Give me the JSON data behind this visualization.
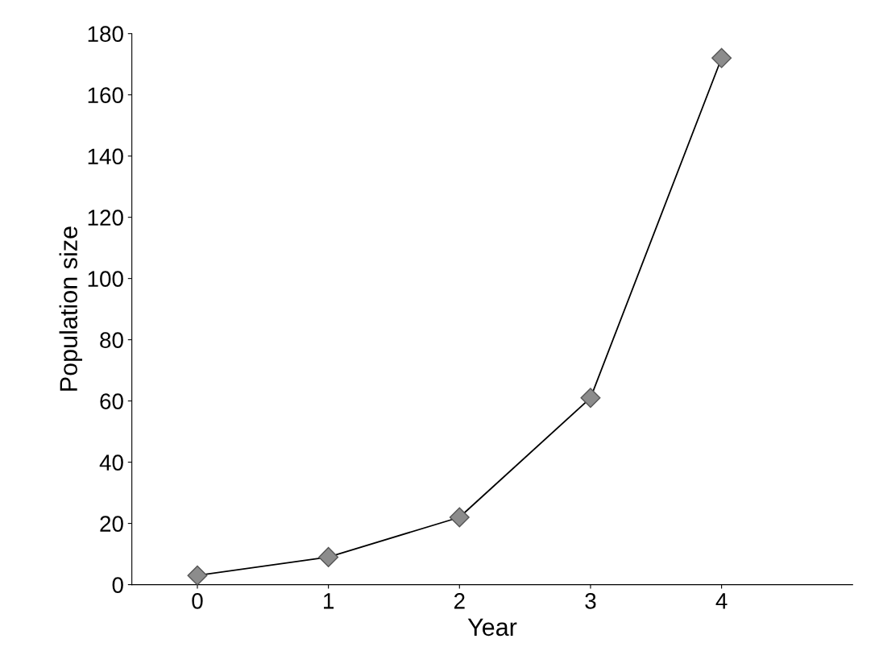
{
  "chart_data": {
    "type": "line",
    "xlabel": "Year",
    "ylabel": "Population size",
    "categories": [
      "0",
      "1",
      "2",
      "3",
      "4"
    ],
    "series": [
      {
        "color": "#8c8c8c",
        "values": [
          3,
          9,
          22,
          61,
          172
        ]
      }
    ],
    "ylim": [
      0,
      180
    ],
    "yticks": [
      0,
      20,
      40,
      60,
      80,
      100,
      120,
      140,
      160,
      180
    ],
    "marker": "diamond",
    "line_style": "solid",
    "grid": false,
    "legend": false
  }
}
